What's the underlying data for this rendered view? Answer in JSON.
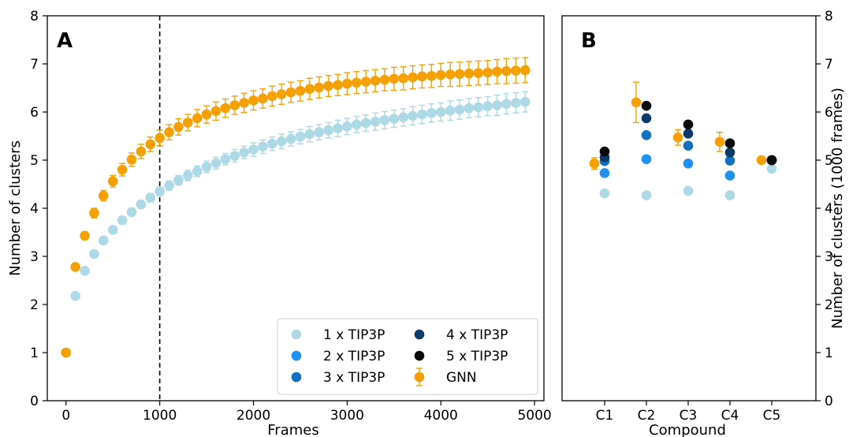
{
  "colors": {
    "tip1": "#add8e6",
    "tip2": "#1e90f0",
    "tip3": "#1270c0",
    "tip4": "#0b3a6a",
    "tip5": "#0a0a0a",
    "gnn": "#f5a000",
    "gnn_err": "#f5a000",
    "tip1_err": "#add8e6"
  },
  "chart_data": [
    {
      "type": "scatter",
      "panel_label": "A",
      "xlabel": "Frames",
      "ylabel": "Number of clusters",
      "xlim": [
        -200,
        5100
      ],
      "ylim": [
        0,
        8
      ],
      "xticks": [
        0,
        1000,
        2000,
        3000,
        4000,
        5000
      ],
      "xtick_labels": [
        "0",
        "1000",
        "2000",
        "3000",
        "4000",
        "5000"
      ],
      "yticks": [
        0,
        1,
        2,
        3,
        4,
        5,
        6,
        7,
        8
      ],
      "ytick_labels": [
        "0",
        "1",
        "2",
        "3",
        "4",
        "5",
        "6",
        "7",
        "8"
      ],
      "vline_x": 1000,
      "grid": false,
      "legend_placement": "lower-right",
      "legend": [
        {
          "label": "1 x TIP3P",
          "color_key": "tip1",
          "errorbar": false
        },
        {
          "label": "2 x TIP3P",
          "color_key": "tip2",
          "errorbar": false
        },
        {
          "label": "3 x TIP3P",
          "color_key": "tip3",
          "errorbar": false
        },
        {
          "label": "4 x TIP3P",
          "color_key": "tip4",
          "errorbar": false
        },
        {
          "label": "5 x TIP3P",
          "color_key": "tip5",
          "errorbar": false
        },
        {
          "label": "GNN",
          "color_key": "gnn",
          "errorbar": true
        }
      ],
      "series": [
        {
          "name": "1 x TIP3P",
          "color_key": "tip1",
          "x": [
            0,
            100,
            200,
            300,
            400,
            500,
            600,
            700,
            800,
            900,
            1000,
            1100,
            1200,
            1300,
            1400,
            1500,
            1600,
            1700,
            1800,
            1900,
            2000,
            2100,
            2200,
            2300,
            2400,
            2500,
            2600,
            2700,
            2800,
            2900,
            3000,
            3100,
            3200,
            3300,
            3400,
            3500,
            3600,
            3700,
            3800,
            3900,
            4000,
            4100,
            4200,
            4300,
            4400,
            4500,
            4600,
            4700,
            4800,
            4900
          ],
          "y": [
            1.0,
            2.18,
            2.7,
            3.05,
            3.33,
            3.55,
            3.75,
            3.92,
            4.08,
            4.22,
            4.35,
            4.47,
            4.58,
            4.68,
            4.77,
            4.86,
            4.94,
            5.02,
            5.09,
            5.16,
            5.22,
            5.28,
            5.34,
            5.39,
            5.44,
            5.49,
            5.54,
            5.58,
            5.62,
            5.66,
            5.7,
            5.74,
            5.77,
            5.8,
            5.83,
            5.86,
            5.89,
            5.92,
            5.95,
            5.98,
            6.0,
            6.03,
            6.05,
            6.08,
            6.1,
            6.12,
            6.14,
            6.17,
            6.19,
            6.21
          ],
          "err": [
            0,
            0.03,
            0.04,
            0.05,
            0.06,
            0.07,
            0.07,
            0.08,
            0.08,
            0.09,
            0.09,
            0.1,
            0.1,
            0.11,
            0.11,
            0.12,
            0.12,
            0.12,
            0.13,
            0.13,
            0.14,
            0.14,
            0.14,
            0.15,
            0.15,
            0.15,
            0.16,
            0.16,
            0.16,
            0.17,
            0.17,
            0.17,
            0.17,
            0.18,
            0.18,
            0.18,
            0.18,
            0.19,
            0.19,
            0.19,
            0.19,
            0.2,
            0.2,
            0.2,
            0.2,
            0.2,
            0.21,
            0.21,
            0.21,
            0.21
          ]
        },
        {
          "name": "GNN",
          "color_key": "gnn",
          "x": [
            0,
            100,
            200,
            300,
            400,
            500,
            600,
            700,
            800,
            900,
            1000,
            1100,
            1200,
            1300,
            1400,
            1500,
            1600,
            1700,
            1800,
            1900,
            2000,
            2100,
            2200,
            2300,
            2400,
            2500,
            2600,
            2700,
            2800,
            2900,
            3000,
            3100,
            3200,
            3300,
            3400,
            3500,
            3600,
            3700,
            3800,
            3900,
            4000,
            4100,
            4200,
            4300,
            4400,
            4500,
            4600,
            4700,
            4800,
            4900
          ],
          "y": [
            1.0,
            2.78,
            3.43,
            3.9,
            4.26,
            4.56,
            4.8,
            5.01,
            5.18,
            5.33,
            5.46,
            5.58,
            5.69,
            5.78,
            5.87,
            5.95,
            6.02,
            6.08,
            6.14,
            6.19,
            6.24,
            6.28,
            6.33,
            6.37,
            6.41,
            6.44,
            6.48,
            6.51,
            6.54,
            6.56,
            6.59,
            6.61,
            6.63,
            6.65,
            6.67,
            6.69,
            6.7,
            6.72,
            6.74,
            6.75,
            6.77,
            6.78,
            6.79,
            6.8,
            6.81,
            6.82,
            6.84,
            6.85,
            6.86,
            6.87
          ],
          "err": [
            0,
            0.05,
            0.08,
            0.1,
            0.11,
            0.12,
            0.13,
            0.14,
            0.15,
            0.15,
            0.16,
            0.16,
            0.17,
            0.17,
            0.18,
            0.18,
            0.19,
            0.19,
            0.19,
            0.2,
            0.2,
            0.2,
            0.21,
            0.21,
            0.21,
            0.21,
            0.22,
            0.22,
            0.22,
            0.22,
            0.23,
            0.23,
            0.23,
            0.23,
            0.23,
            0.24,
            0.24,
            0.24,
            0.24,
            0.24,
            0.24,
            0.25,
            0.25,
            0.25,
            0.25,
            0.25,
            0.25,
            0.26,
            0.26,
            0.26
          ]
        }
      ]
    },
    {
      "type": "scatter",
      "panel_label": "B",
      "xlabel": "Compound",
      "ylabel": "Number of clusters (1000 frames)",
      "categories": [
        "C1",
        "C2",
        "C3",
        "C4",
        "C5"
      ],
      "ylim": [
        0,
        8
      ],
      "yticks": [
        0,
        1,
        2,
        3,
        4,
        5,
        6,
        7,
        8
      ],
      "ytick_labels": [
        "0",
        "1",
        "2",
        "3",
        "4",
        "5",
        "6",
        "7",
        "8"
      ],
      "grid": false,
      "series": [
        {
          "name": "1 x TIP3P",
          "color_key": "tip1",
          "values": [
            4.31,
            4.27,
            4.36,
            4.27,
            4.82
          ]
        },
        {
          "name": "2 x TIP3P",
          "color_key": "tip2",
          "values": [
            4.73,
            5.02,
            4.93,
            4.68,
            5.0
          ]
        },
        {
          "name": "3 x TIP3P",
          "color_key": "tip3",
          "values": [
            4.98,
            5.52,
            5.3,
            4.99,
            5.0
          ]
        },
        {
          "name": "4 x TIP3P",
          "color_key": "tip4",
          "values": [
            5.06,
            5.87,
            5.55,
            5.16,
            5.0
          ]
        },
        {
          "name": "5 x TIP3P",
          "color_key": "tip5",
          "values": [
            5.18,
            6.13,
            5.74,
            5.35,
            5.0
          ]
        },
        {
          "name": "GNN",
          "color_key": "gnn",
          "values": [
            4.93,
            6.2,
            5.47,
            5.38,
            5.0
          ],
          "err": [
            0.12,
            0.42,
            0.16,
            0.2,
            0.0
          ]
        }
      ]
    }
  ]
}
